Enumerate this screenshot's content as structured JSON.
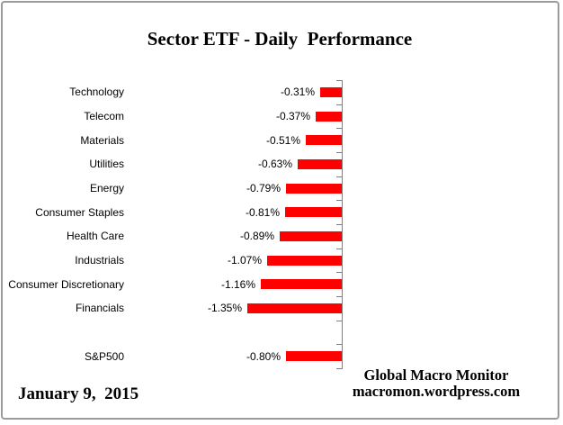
{
  "page": {
    "date": "January 9,  2015",
    "source": {
      "line1": "Global Macro Monitor",
      "line2": "macromon.wordpress.com"
    }
  },
  "colors": {
    "bar": "#FF0000",
    "axis": "#808080",
    "frame_border": "#9B9B9B",
    "text": "#000000",
    "background": "#FFFFFF"
  },
  "chart_data": {
    "type": "bar",
    "orientation": "horizontal",
    "title": "Sector ETF - Daily  Performance",
    "categories": [
      "Technology",
      "Telecom",
      "Materials",
      "Utilities",
      "Energy",
      "Consumer Staples",
      "Health Care",
      "Industrials",
      "Consumer Discretionary",
      "Financials",
      "",
      "S&P500"
    ],
    "values": [
      -0.31,
      -0.37,
      -0.51,
      -0.63,
      -0.79,
      -0.81,
      -0.89,
      -1.07,
      -1.16,
      -1.35,
      null,
      -0.8
    ],
    "value_labels": [
      "-0.31%",
      "-0.37%",
      "-0.51%",
      "-0.63%",
      "-0.79%",
      "-0.81%",
      "-0.89%",
      "-1.07%",
      "-1.16%",
      "-1.35%",
      "",
      "-0.80%"
    ],
    "xlim": [
      -1.45,
      0
    ],
    "xlabel": "",
    "ylabel": "",
    "grid": false,
    "legend": false,
    "bar_color": "#FF0000",
    "data_label_position": "outside-end"
  }
}
